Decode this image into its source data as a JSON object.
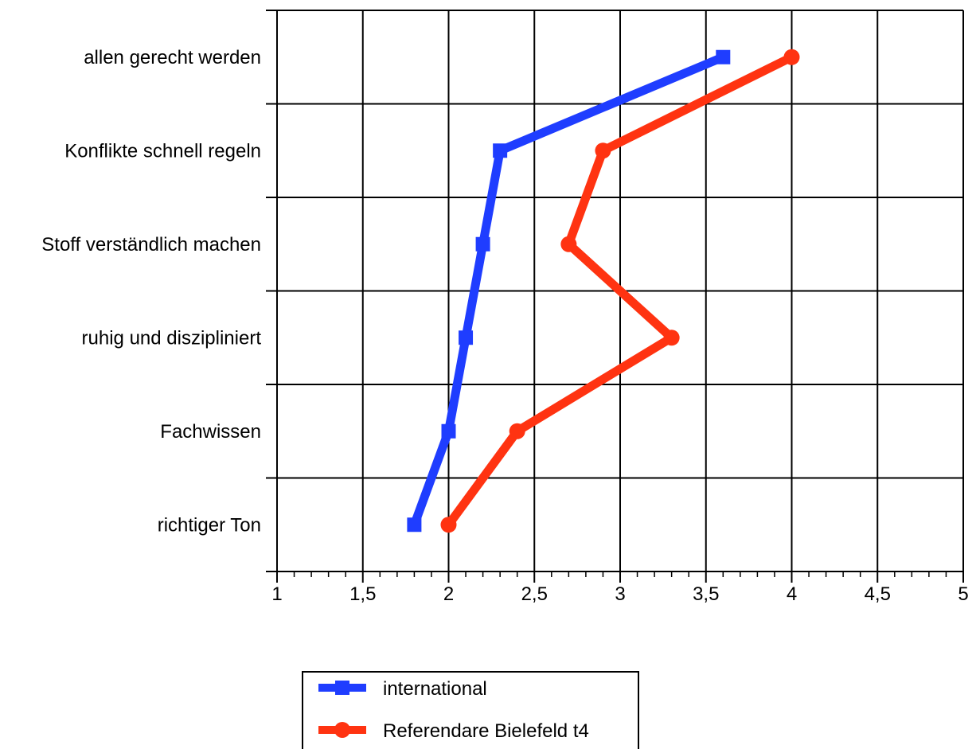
{
  "chart_data": {
    "type": "line",
    "orientation": "horizontal",
    "categories": [
      "allen gerecht werden",
      "Konflikte schnell regeln",
      "Stoff verständlich machen",
      "ruhig und diszipliniert",
      "Fachwissen",
      "richtiger Ton"
    ],
    "x_ticks": [
      "1",
      "1,5",
      "2",
      "2,5",
      "3",
      "3,5",
      "4",
      "4,5",
      "5"
    ],
    "xlim": [
      1,
      5
    ],
    "grid": true,
    "legend_position": "bottom",
    "series": [
      {
        "name": "international",
        "color": "#1f3dff",
        "marker": "square",
        "values": [
          3.6,
          2.3,
          2.2,
          2.1,
          2.0,
          1.8
        ]
      },
      {
        "name": "Referendare Bielefeld t4",
        "color": "#ff3311",
        "marker": "circle",
        "values": [
          4.0,
          2.9,
          2.7,
          3.3,
          2.4,
          2.0
        ]
      }
    ]
  }
}
